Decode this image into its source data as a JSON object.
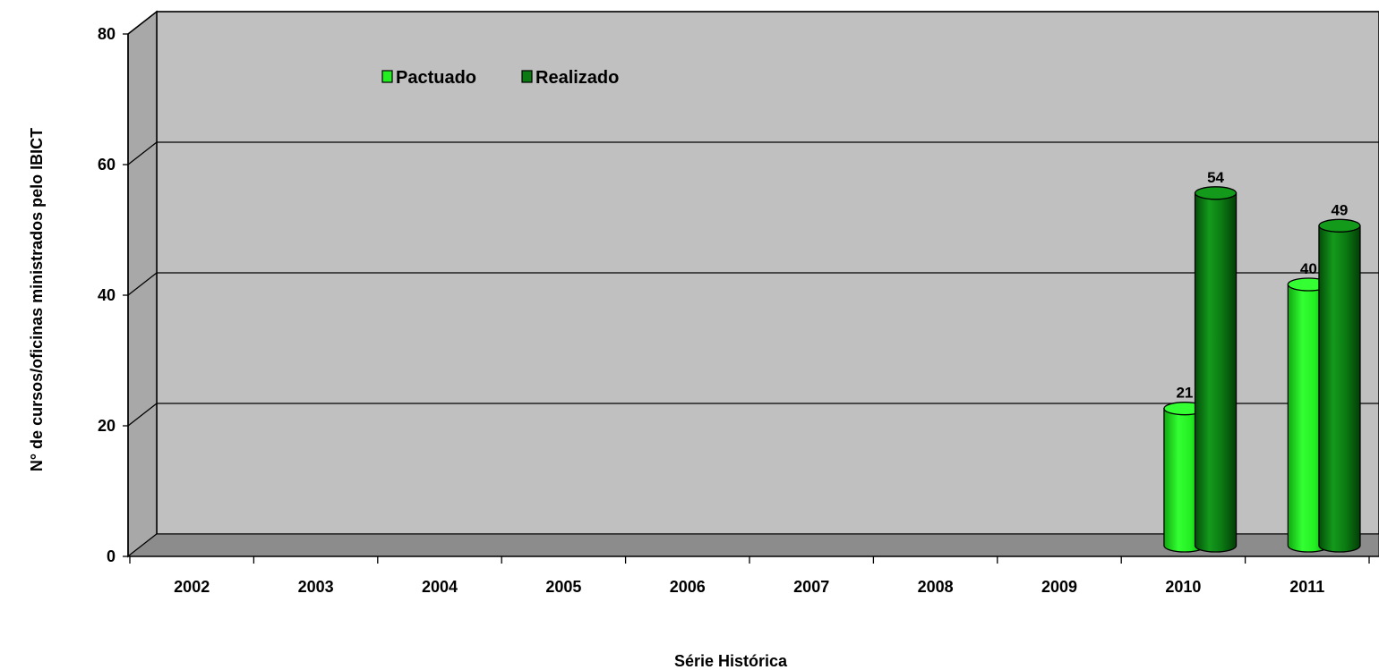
{
  "chart_data": {
    "type": "bar",
    "variant": "3d-cylinder",
    "title": "",
    "xlabel": "Série Histórica",
    "ylabel": "N° de cursos/oficinas ministrados  pelo IBICT",
    "categories": [
      "2002",
      "2003",
      "2004",
      "2005",
      "2006",
      "2007",
      "2008",
      "2009",
      "2010",
      "2011"
    ],
    "series": [
      {
        "name": "Pactuado",
        "color": "#22ee22",
        "values": [
          null,
          null,
          null,
          null,
          null,
          null,
          null,
          null,
          21,
          40
        ]
      },
      {
        "name": "Realizado",
        "color": "#0b7a12",
        "values": [
          null,
          null,
          null,
          null,
          null,
          null,
          null,
          null,
          54,
          49
        ]
      }
    ],
    "ylim": [
      0,
      80
    ],
    "yticks": [
      "0",
      "20",
      "40",
      "60",
      "80"
    ],
    "grid": true,
    "legend_position": "top-left",
    "wall_color": "#c0c0c0",
    "floor_color": "#8c8c8c"
  }
}
